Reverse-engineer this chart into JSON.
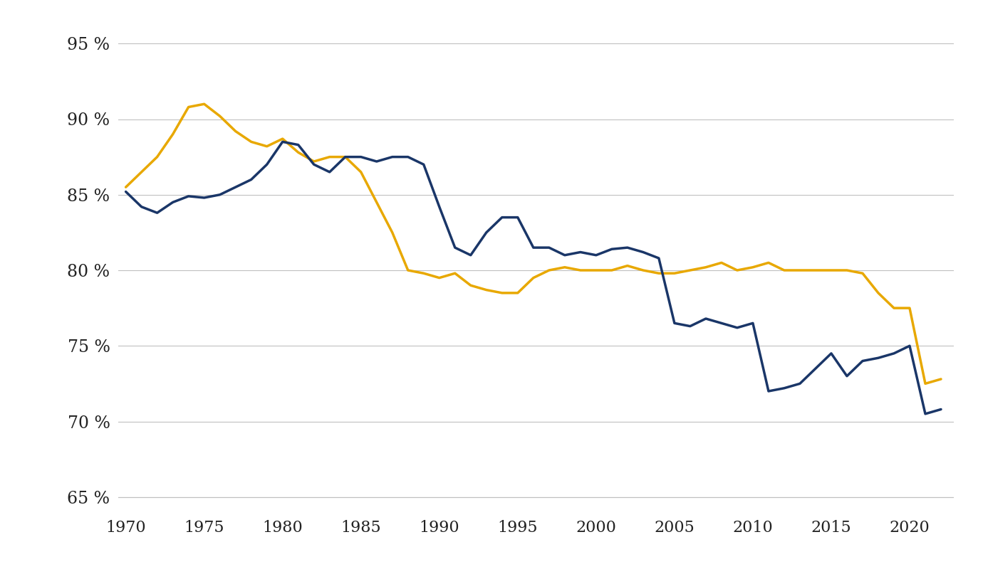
{
  "navy_series": {
    "color": "#1a3668",
    "linewidth": 2.5,
    "years": [
      1970,
      1971,
      1972,
      1973,
      1974,
      1975,
      1976,
      1977,
      1978,
      1979,
      1980,
      1981,
      1982,
      1983,
      1984,
      1985,
      1986,
      1987,
      1988,
      1989,
      1990,
      1991,
      1992,
      1993,
      1994,
      1995,
      1996,
      1997,
      1998,
      1999,
      2000,
      2001,
      2002,
      2003,
      2004,
      2005,
      2006,
      2007,
      2008,
      2009,
      2010,
      2011,
      2012,
      2013,
      2014,
      2015,
      2016,
      2017,
      2018,
      2019,
      2020,
      2021,
      2022
    ],
    "values": [
      85.2,
      84.2,
      83.8,
      84.5,
      84.9,
      84.8,
      85.0,
      85.5,
      86.0,
      87.0,
      88.5,
      88.3,
      87.0,
      86.5,
      87.5,
      87.5,
      87.2,
      87.5,
      87.5,
      87.0,
      84.2,
      81.5,
      81.0,
      82.5,
      83.5,
      83.5,
      81.5,
      81.5,
      81.0,
      81.2,
      81.0,
      81.4,
      81.5,
      81.2,
      80.8,
      76.5,
      76.3,
      76.8,
      76.5,
      76.2,
      76.5,
      72.0,
      72.2,
      72.5,
      73.5,
      74.5,
      73.0,
      74.0,
      74.2,
      74.5,
      75.0,
      70.5,
      70.8
    ]
  },
  "gold_series": {
    "color": "#e8a800",
    "linewidth": 2.5,
    "years": [
      1970,
      1971,
      1972,
      1973,
      1974,
      1975,
      1976,
      1977,
      1978,
      1979,
      1980,
      1981,
      1982,
      1983,
      1984,
      1985,
      1986,
      1987,
      1988,
      1989,
      1990,
      1991,
      1992,
      1993,
      1994,
      1995,
      1996,
      1997,
      1998,
      1999,
      2000,
      2001,
      2002,
      2003,
      2004,
      2005,
      2006,
      2007,
      2008,
      2009,
      2010,
      2011,
      2012,
      2013,
      2014,
      2015,
      2016,
      2017,
      2018,
      2019,
      2020,
      2021,
      2022
    ],
    "values": [
      85.5,
      86.5,
      87.5,
      89.0,
      90.8,
      91.0,
      90.2,
      89.2,
      88.5,
      88.2,
      88.7,
      87.8,
      87.2,
      87.5,
      87.5,
      86.5,
      84.5,
      82.5,
      80.0,
      79.8,
      79.5,
      79.8,
      79.0,
      78.7,
      78.5,
      78.5,
      79.5,
      80.0,
      80.2,
      80.0,
      80.0,
      80.0,
      80.3,
      80.0,
      79.8,
      79.8,
      80.0,
      80.2,
      80.5,
      80.0,
      80.2,
      80.5,
      80.0,
      80.0,
      80.0,
      80.0,
      80.0,
      79.8,
      78.5,
      77.5,
      77.5,
      72.5,
      72.8
    ]
  },
  "ylim": [
    64,
    96
  ],
  "yticks": [
    65,
    70,
    75,
    80,
    85,
    90,
    95
  ],
  "xlim": [
    1969.5,
    2022.8
  ],
  "xticks": [
    1970,
    1975,
    1980,
    1985,
    1990,
    1995,
    2000,
    2005,
    2010,
    2015,
    2020
  ],
  "background_color": "#ffffff",
  "grid_color": "#c0c0c0",
  "tick_label_color": "#222222",
  "font_family": "serif",
  "label_fontsize": 17,
  "tick_fontsize": 16
}
